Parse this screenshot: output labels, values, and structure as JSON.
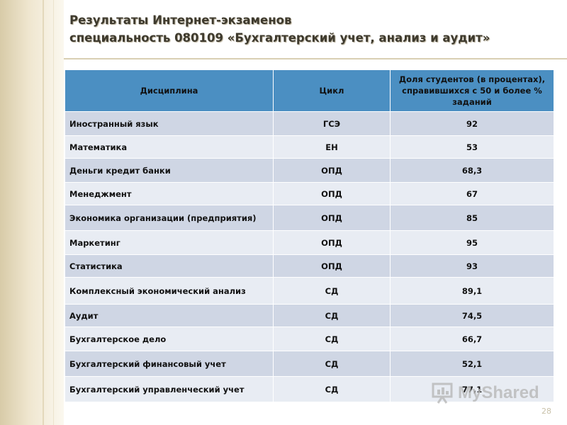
{
  "title": {
    "line1": "Результаты Интернет-экзаменов",
    "line2": "специальность 080109 «Бухгалтерский учет, анализ и аудит»"
  },
  "table": {
    "headers": [
      "Дисциплина",
      "Цикл",
      "Доля студентов (в процентах), справившихся с 50 и более % заданий"
    ],
    "rows": [
      {
        "discipline": "Иностранный язык",
        "cycle": "ГСЭ",
        "share": "92"
      },
      {
        "discipline": "Математика",
        "cycle": "ЕН",
        "share": "53"
      },
      {
        "discipline": "Деньги кредит банки",
        "cycle": "ОПД",
        "share": "68,3"
      },
      {
        "discipline": "Менеджмент",
        "cycle": "ОПД",
        "share": "67"
      },
      {
        "discipline": "Экономика организации (предприятия)",
        "cycle": "ОПД",
        "share": "85"
      },
      {
        "discipline": "Маркетинг",
        "cycle": "ОПД",
        "share": "95"
      },
      {
        "discipline": "Статистика",
        "cycle": "ОПД",
        "share": "93"
      },
      {
        "discipline": "Комплексный экономический анализ",
        "cycle": "СД",
        "share": "89,1"
      },
      {
        "discipline": "Аудит",
        "cycle": "СД",
        "share": "74,5"
      },
      {
        "discipline": "Бухгалтерское дело",
        "cycle": "СД",
        "share": "66,7"
      },
      {
        "discipline": "Бухгалтерский финансовый учет",
        "cycle": "СД",
        "share": "52,1"
      },
      {
        "discipline": "Бухгалтерский управленческий учет",
        "cycle": "СД",
        "share": "77,1"
      }
    ]
  },
  "watermark": {
    "text": "MyShared"
  },
  "page_number": "28",
  "colors": {
    "header_bg": "#4b8fc2",
    "row_dark": "#cfd6e4",
    "row_light": "#e8ecf3",
    "title_text": "#3e3a2e",
    "left_band": "#efe6cf"
  }
}
